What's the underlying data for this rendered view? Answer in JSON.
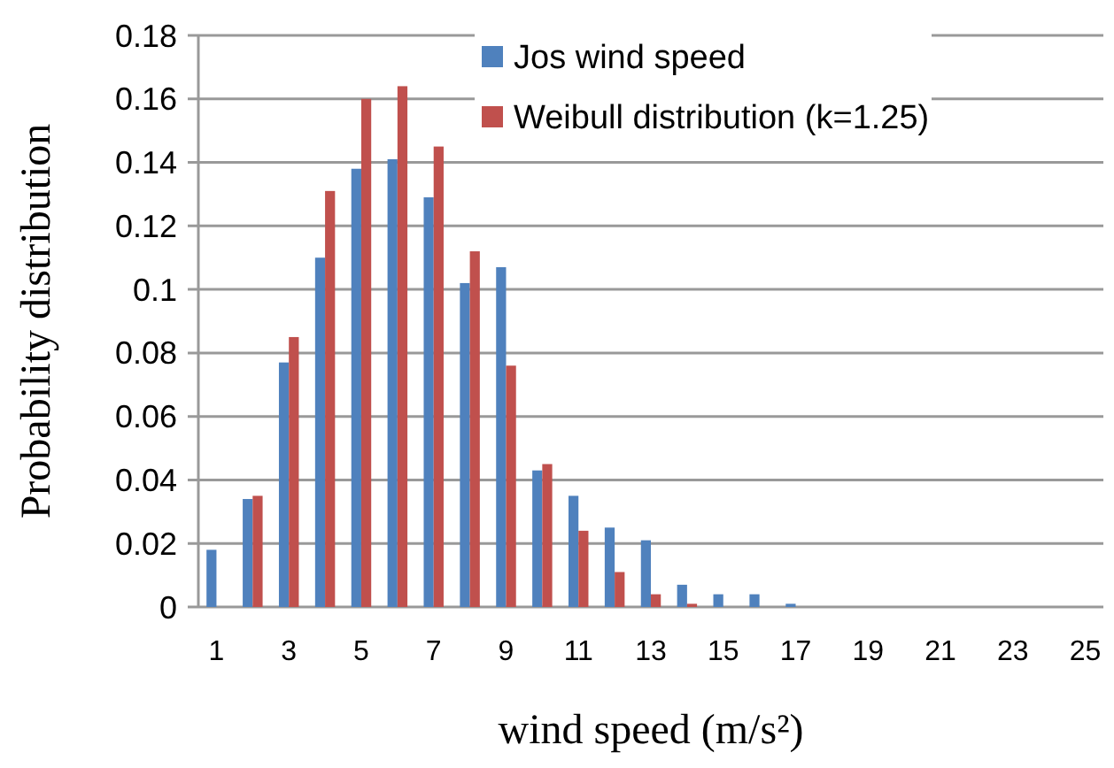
{
  "chart_data": {
    "type": "bar",
    "xlabel": "wind speed (m/s²)",
    "ylabel": "Probability distribution",
    "x": [
      1,
      2,
      3,
      4,
      5,
      6,
      7,
      8,
      9,
      10,
      11,
      12,
      13,
      14,
      15,
      16,
      17,
      18,
      19,
      20,
      21,
      22,
      23,
      24,
      25
    ],
    "xlim": [
      0.5,
      25.5
    ],
    "xticks": [
      1,
      3,
      5,
      7,
      9,
      11,
      13,
      15,
      17,
      19,
      21,
      23,
      25
    ],
    "series": [
      {
        "name": "Jos wind speed",
        "color": "#4f81bd",
        "values": [
          0.018,
          0.034,
          0.077,
          0.11,
          0.138,
          0.141,
          0.129,
          0.102,
          0.107,
          0.043,
          0.035,
          0.025,
          0.021,
          0.007,
          0.004,
          0.004,
          0.001,
          0,
          0,
          0,
          0,
          0,
          0,
          0,
          0
        ]
      },
      {
        "name": "Weibull distribution (k=1.25)",
        "color": "#c0504d",
        "values": [
          0,
          0.035,
          0.085,
          0.131,
          0.16,
          0.164,
          0.145,
          0.112,
          0.076,
          0.045,
          0.024,
          0.011,
          0.004,
          0.001,
          0,
          0,
          0,
          0,
          0,
          0,
          0,
          0,
          0,
          0,
          0
        ]
      }
    ],
    "ylim": [
      0,
      0.18
    ],
    "yticks": [
      0,
      0.02,
      0.04,
      0.06,
      0.08,
      0.1,
      0.12,
      0.14,
      0.16,
      0.18
    ],
    "grid": "y",
    "legend": "top right"
  }
}
